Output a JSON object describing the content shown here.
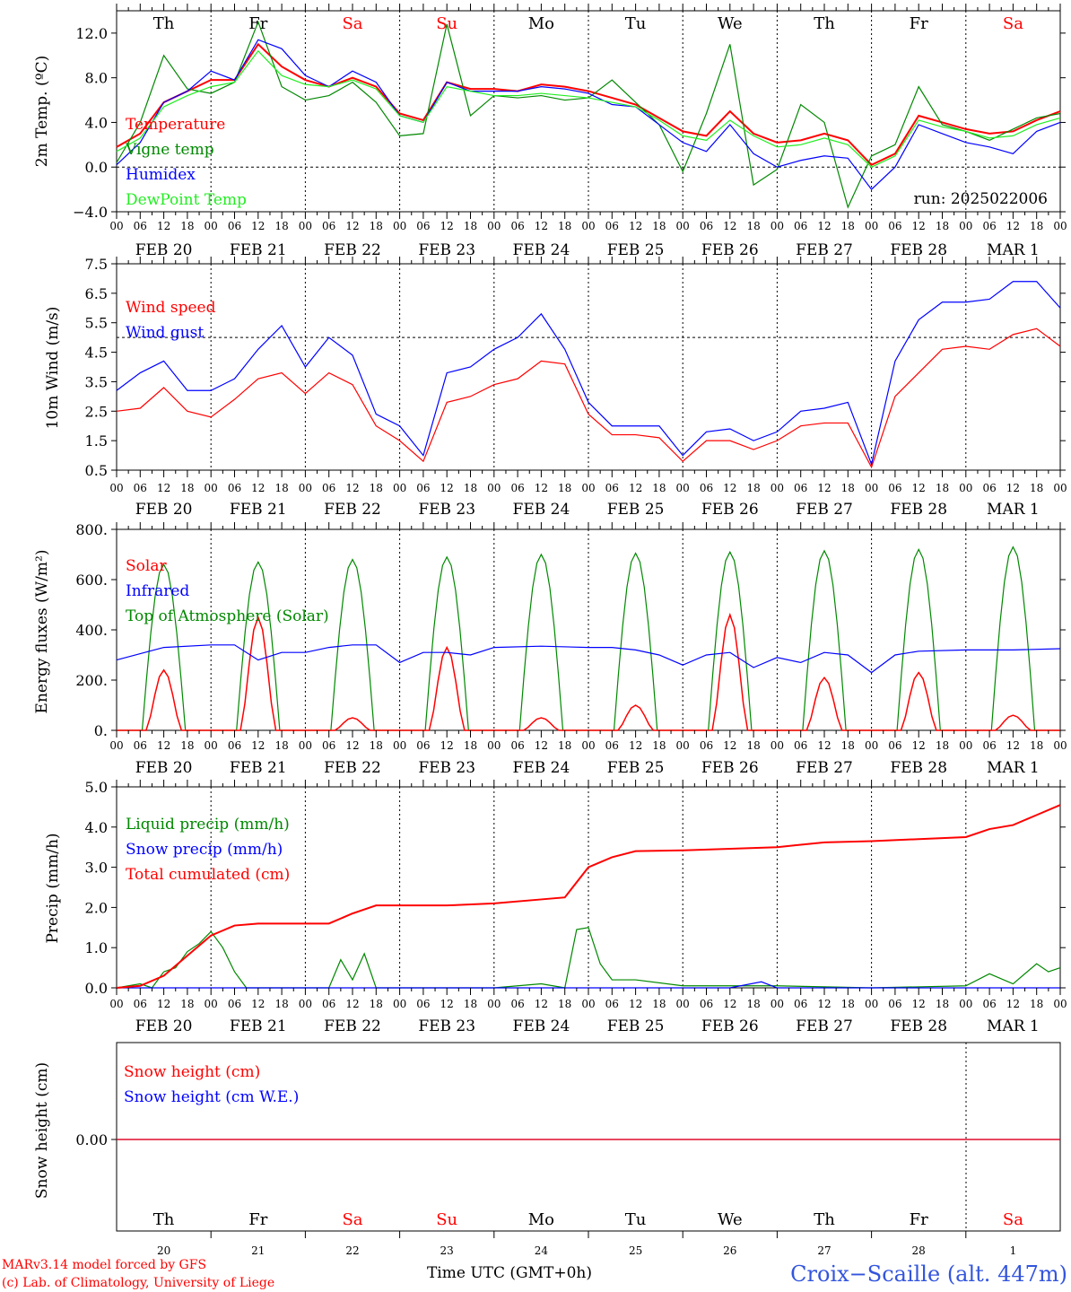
{
  "colors": {
    "red": "#ff0000",
    "dark_green": "#008800",
    "blue": "#0000ff",
    "light_green": "#22ee22",
    "weekend": "#ff0000",
    "station": "#3355dd"
  },
  "time_axis": {
    "hour_ticks": [
      "00",
      "06",
      "12",
      "18"
    ],
    "date_labels": [
      "FEB 20",
      "FEB 21",
      "FEB 22",
      "FEB 23",
      "FEB 24",
      "FEB 25",
      "FEB 26",
      "FEB 27",
      "FEB 28",
      "MAR  1"
    ],
    "day_abbrev": [
      "Th",
      "Fr",
      "Sa",
      "Su",
      "Mo",
      "Tu",
      "We",
      "Th",
      "Fr",
      "Sa"
    ],
    "weekend_days": [
      2,
      3,
      9
    ],
    "day_numbers": [
      "20",
      "21",
      "22",
      "23",
      "24",
      "25",
      "26",
      "27",
      "28",
      "1"
    ],
    "title": "Time UTC (GMT+0h)"
  },
  "panel_temp": {
    "ylabel": "2m Temp. (ºC)",
    "run_label": "run: 2025022006",
    "legend": [
      "Temperature",
      "Vigne temp",
      "Humidex",
      "DewPoint Temp"
    ]
  },
  "panel_wind": {
    "ylabel": "10m Wind (m/s)",
    "legend": [
      "Wind speed",
      "Wind gust"
    ]
  },
  "panel_energy": {
    "ylabel": "Energy fluxes (W/m²)",
    "legend": [
      "Solar",
      "Infrared",
      "Top of Atmosphere (Solar)"
    ]
  },
  "panel_precip": {
    "ylabel": "Precip (mm/h)",
    "legend": [
      "Liquid precip (mm/h)",
      "Snow precip (mm/h)",
      "Total cumulated (cm)"
    ]
  },
  "panel_snow": {
    "ylabel": "Snow height (cm)",
    "legend": [
      "Snow height (cm)",
      "Snow height (cm W.E.)"
    ]
  },
  "footer": {
    "model_line": "MARv3.14 model forced by GFS",
    "copyright_line": "(c) Lab. of Climatology, University of Liege",
    "station": "Croix−Scaille (alt. 447m)"
  },
  "chart_data": [
    {
      "type": "line",
      "ylabel": "2m Temp. (ºC)",
      "ylim": [
        -4.0,
        14.0
      ],
      "yticks": [
        "−4.0",
        "0.0",
        "4.0",
        "8.0",
        "12.0"
      ],
      "ref_line": 0.0,
      "x_unit": "hours since 2025-02-20 00 UTC",
      "series": [
        {
          "name": "Temperature",
          "color": "#ff0000",
          "x": [
            0,
            6,
            12,
            18,
            24,
            30,
            36,
            42,
            48,
            54,
            60,
            66,
            72,
            78,
            84,
            90,
            96,
            102,
            108,
            114,
            120,
            126,
            132,
            138,
            144,
            150,
            156,
            162,
            168,
            174,
            180,
            186,
            192,
            198,
            204,
            210,
            216,
            222,
            228,
            234,
            240
          ],
          "y": [
            1.8,
            3.0,
            5.8,
            6.8,
            7.8,
            7.8,
            11.0,
            9.0,
            7.8,
            7.2,
            8.0,
            7.2,
            4.8,
            4.2,
            7.6,
            7.0,
            7.0,
            6.8,
            7.4,
            7.2,
            6.8,
            6.2,
            5.6,
            4.4,
            3.2,
            2.8,
            5.0,
            3.0,
            2.2,
            2.4,
            3.0,
            2.4,
            0.2,
            1.2,
            4.6,
            4.0,
            3.4,
            3.0,
            3.2,
            4.2,
            5.0
          ]
        },
        {
          "name": "Vigne temp",
          "color": "#008800",
          "x": [
            0,
            6,
            12,
            18,
            24,
            30,
            36,
            42,
            48,
            54,
            60,
            66,
            72,
            78,
            84,
            90,
            96,
            102,
            108,
            114,
            120,
            126,
            132,
            138,
            144,
            150,
            156,
            162,
            168,
            174,
            180,
            186,
            192,
            198,
            204,
            210,
            216,
            222,
            228,
            234,
            240
          ],
          "y": [
            0.4,
            4.0,
            10.0,
            7.0,
            6.6,
            7.6,
            13.0,
            7.2,
            6.0,
            6.4,
            7.6,
            5.8,
            2.8,
            3.0,
            12.8,
            4.6,
            6.4,
            6.2,
            6.4,
            6.0,
            6.2,
            7.8,
            5.8,
            3.8,
            -0.4,
            4.8,
            11.0,
            -1.6,
            -0.2,
            5.6,
            4.0,
            -3.6,
            1.0,
            2.0,
            7.2,
            3.8,
            3.2,
            2.4,
            3.4,
            4.4,
            4.8
          ]
        },
        {
          "name": "Humidex",
          "color": "#0000ff",
          "x": [
            0,
            6,
            12,
            18,
            24,
            30,
            36,
            42,
            48,
            54,
            60,
            66,
            72,
            78,
            84,
            90,
            96,
            102,
            108,
            114,
            120,
            126,
            132,
            138,
            144,
            150,
            156,
            162,
            168,
            174,
            180,
            186,
            192,
            198,
            204,
            210,
            216,
            222,
            228,
            234,
            240
          ],
          "y": [
            0.2,
            2.2,
            5.8,
            6.8,
            8.6,
            7.8,
            11.4,
            10.6,
            8.2,
            7.2,
            8.6,
            7.6,
            4.6,
            4.0,
            7.6,
            6.8,
            6.8,
            6.8,
            7.2,
            7.0,
            6.6,
            5.6,
            5.4,
            3.8,
            2.2,
            1.4,
            3.8,
            1.2,
            0.0,
            0.6,
            1.0,
            0.8,
            -2.0,
            0.0,
            3.8,
            3.0,
            2.2,
            1.8,
            1.2,
            3.2,
            4.0
          ]
        },
        {
          "name": "DewPoint Temp",
          "color": "#22ee22",
          "x": [
            0,
            6,
            12,
            18,
            24,
            30,
            36,
            42,
            48,
            54,
            60,
            66,
            72,
            78,
            84,
            90,
            96,
            102,
            108,
            114,
            120,
            126,
            132,
            138,
            144,
            150,
            156,
            162,
            168,
            174,
            180,
            186,
            192,
            198,
            204,
            210,
            216,
            222,
            228,
            234,
            240
          ],
          "y": [
            1.4,
            2.6,
            5.4,
            6.4,
            7.2,
            7.6,
            10.4,
            8.2,
            7.4,
            7.2,
            7.8,
            7.0,
            4.6,
            4.0,
            7.2,
            6.8,
            6.4,
            6.4,
            6.6,
            6.4,
            6.2,
            5.8,
            5.4,
            4.2,
            2.8,
            2.4,
            4.2,
            2.8,
            1.8,
            2.0,
            2.6,
            2.0,
            0.0,
            1.0,
            4.2,
            3.6,
            3.2,
            2.6,
            2.8,
            3.8,
            4.4
          ]
        }
      ]
    },
    {
      "type": "line",
      "ylabel": "10m Wind (m/s)",
      "ylim": [
        0.5,
        7.5
      ],
      "yticks": [
        "0.5",
        "1.5",
        "2.5",
        "3.5",
        "4.5",
        "5.5",
        "6.5",
        "7.5"
      ],
      "ref_line": 5.0,
      "x_unit": "hours since 2025-02-20 00 UTC",
      "series": [
        {
          "name": "Wind speed",
          "color": "#ff0000",
          "x": [
            0,
            6,
            12,
            18,
            24,
            30,
            36,
            42,
            48,
            54,
            60,
            66,
            72,
            78,
            84,
            90,
            96,
            102,
            108,
            114,
            120,
            126,
            132,
            138,
            144,
            150,
            156,
            162,
            168,
            174,
            180,
            186,
            192,
            198,
            204,
            210,
            216,
            222,
            228,
            234,
            240
          ],
          "y": [
            2.5,
            2.6,
            3.3,
            2.5,
            2.3,
            2.9,
            3.6,
            3.8,
            3.1,
            3.8,
            3.4,
            2.0,
            1.5,
            0.8,
            2.8,
            3.0,
            3.4,
            3.6,
            4.2,
            4.1,
            2.4,
            1.7,
            1.7,
            1.6,
            0.8,
            1.5,
            1.5,
            1.2,
            1.5,
            2.0,
            2.1,
            2.1,
            0.6,
            3.0,
            3.8,
            4.6,
            4.7,
            4.6,
            5.1,
            5.3,
            4.7
          ]
        },
        {
          "name": "Wind gust",
          "color": "#0000ff",
          "x": [
            0,
            6,
            12,
            18,
            24,
            30,
            36,
            42,
            48,
            54,
            60,
            66,
            72,
            78,
            84,
            90,
            96,
            102,
            108,
            114,
            120,
            126,
            132,
            138,
            144,
            150,
            156,
            162,
            168,
            174,
            180,
            186,
            192,
            198,
            204,
            210,
            216,
            222,
            228,
            234,
            240
          ],
          "y": [
            3.2,
            3.8,
            4.2,
            3.2,
            3.2,
            3.6,
            4.6,
            5.4,
            4.0,
            5.0,
            4.4,
            2.4,
            2.0,
            1.0,
            3.8,
            4.0,
            4.6,
            5.0,
            5.8,
            4.6,
            2.8,
            2.0,
            2.0,
            2.0,
            1.0,
            1.8,
            1.9,
            1.5,
            1.8,
            2.5,
            2.6,
            2.8,
            0.7,
            4.2,
            5.6,
            6.2,
            6.2,
            6.3,
            6.9,
            6.9,
            6.0
          ]
        }
      ]
    },
    {
      "type": "line",
      "ylabel": "Energy fluxes (W/m²)",
      "ylim": [
        0,
        800
      ],
      "yticks": [
        "0.",
        "200.",
        "400.",
        "600.",
        "800."
      ],
      "x_unit": "hours since 2025-02-20 00 UTC",
      "toa_peaks": [
        660,
        670,
        680,
        690,
        700,
        705,
        710,
        715,
        720,
        730
      ],
      "solar_peaks": [
        240,
        450,
        50,
        330,
        50,
        100,
        460,
        210,
        230,
        60
      ],
      "series": [
        {
          "name": "Infrared",
          "color": "#0000ff",
          "x": [
            0,
            12,
            24,
            30,
            36,
            42,
            48,
            54,
            60,
            66,
            72,
            78,
            84,
            90,
            96,
            108,
            120,
            126,
            132,
            138,
            144,
            150,
            156,
            162,
            168,
            174,
            180,
            186,
            192,
            198,
            204,
            216,
            228,
            240
          ],
          "y": [
            280,
            330,
            340,
            340,
            280,
            310,
            310,
            330,
            340,
            340,
            270,
            310,
            310,
            300,
            330,
            335,
            330,
            330,
            320,
            300,
            260,
            300,
            310,
            250,
            290,
            270,
            310,
            300,
            230,
            300,
            315,
            320,
            320,
            325
          ]
        }
      ]
    },
    {
      "type": "line",
      "ylabel": "Precip (mm/h)",
      "ylim": [
        0.0,
        5.0
      ],
      "yticks": [
        "0.0",
        "1.0",
        "2.0",
        "3.0",
        "4.0",
        "5.0"
      ],
      "x_unit": "hours since 2025-02-20 00 UTC",
      "series": [
        {
          "name": "Liquid precip (mm/h)",
          "color": "#008800",
          "x": [
            0,
            6,
            9,
            12,
            15,
            18,
            21,
            24,
            27,
            30,
            33,
            36,
            48,
            54,
            57,
            60,
            63,
            66,
            69,
            72,
            84,
            96,
            108,
            114,
            117,
            120,
            123,
            126,
            132,
            144,
            168,
            192,
            216,
            222,
            228,
            234,
            237,
            240
          ],
          "y": [
            0.0,
            0.1,
            0.0,
            0.4,
            0.5,
            0.9,
            1.1,
            1.4,
            1.0,
            0.4,
            0.0,
            0.0,
            0.0,
            0.0,
            0.7,
            0.2,
            0.85,
            0.0,
            0.0,
            0.0,
            0.0,
            0.0,
            0.1,
            0.0,
            1.45,
            1.5,
            0.6,
            0.2,
            0.2,
            0.05,
            0.05,
            0.0,
            0.05,
            0.35,
            0.1,
            0.6,
            0.4,
            0.5
          ]
        },
        {
          "name": "Snow precip (mm/h)",
          "color": "#0000ff",
          "x": [
            0,
            120,
            156,
            164,
            168,
            240
          ],
          "y": [
            0.0,
            0.0,
            0.0,
            0.15,
            0.0,
            0.0
          ]
        },
        {
          "name": "Total cumulated (cm)",
          "color": "#ff0000",
          "x": [
            0,
            6,
            12,
            18,
            24,
            30,
            36,
            48,
            54,
            60,
            66,
            72,
            84,
            96,
            108,
            114,
            120,
            126,
            132,
            144,
            168,
            180,
            192,
            204,
            216,
            222,
            228,
            234,
            240
          ],
          "y": [
            0.0,
            0.05,
            0.3,
            0.8,
            1.3,
            1.55,
            1.6,
            1.6,
            1.6,
            1.85,
            2.05,
            2.05,
            2.05,
            2.1,
            2.2,
            2.25,
            3.0,
            3.25,
            3.4,
            3.42,
            3.5,
            3.62,
            3.65,
            3.7,
            3.75,
            3.95,
            4.05,
            4.3,
            4.55
          ]
        }
      ]
    },
    {
      "type": "line",
      "ylabel": "Snow height (cm)",
      "yticks": [
        "0.00"
      ],
      "x_unit": "hours since 2025-02-20 00 UTC",
      "series": [
        {
          "name": "Snow height (cm)",
          "color": "#ff0000",
          "x": [
            0,
            240
          ],
          "y": [
            0.0,
            0.0
          ]
        },
        {
          "name": "Snow height (cm W.E.)",
          "color": "#0000ff",
          "x": [
            0,
            240
          ],
          "y": [
            0.0,
            0.0
          ]
        }
      ]
    }
  ]
}
